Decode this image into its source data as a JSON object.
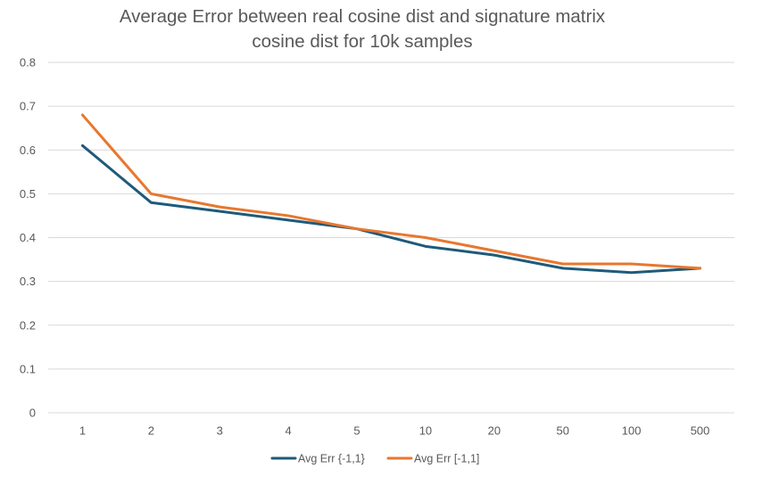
{
  "chart_data": {
    "type": "line",
    "title_lines": [
      "Average Error between real cosine dist and signature matrix",
      "cosine dist for 10k samples"
    ],
    "xlabel": "",
    "ylabel": "",
    "categories": [
      "1",
      "2",
      "3",
      "4",
      "5",
      "10",
      "20",
      "50",
      "100",
      "500"
    ],
    "y_ticks": [
      "0",
      "0.1",
      "0.2",
      "0.3",
      "0.4",
      "0.5",
      "0.6",
      "0.7",
      "0.8"
    ],
    "ylim": [
      0,
      0.8
    ],
    "grid": true,
    "legend_position": "bottom",
    "series": [
      {
        "name": "Avg Err {-1,1}",
        "color": "#1f5a7a",
        "values": [
          0.61,
          0.48,
          0.46,
          0.44,
          0.42,
          0.38,
          0.36,
          0.33,
          0.32,
          0.33
        ]
      },
      {
        "name": "Avg Err [-1,1]",
        "color": "#e8772e",
        "values": [
          0.68,
          0.5,
          0.47,
          0.45,
          0.42,
          0.4,
          0.37,
          0.34,
          0.34,
          0.33
        ]
      }
    ]
  }
}
